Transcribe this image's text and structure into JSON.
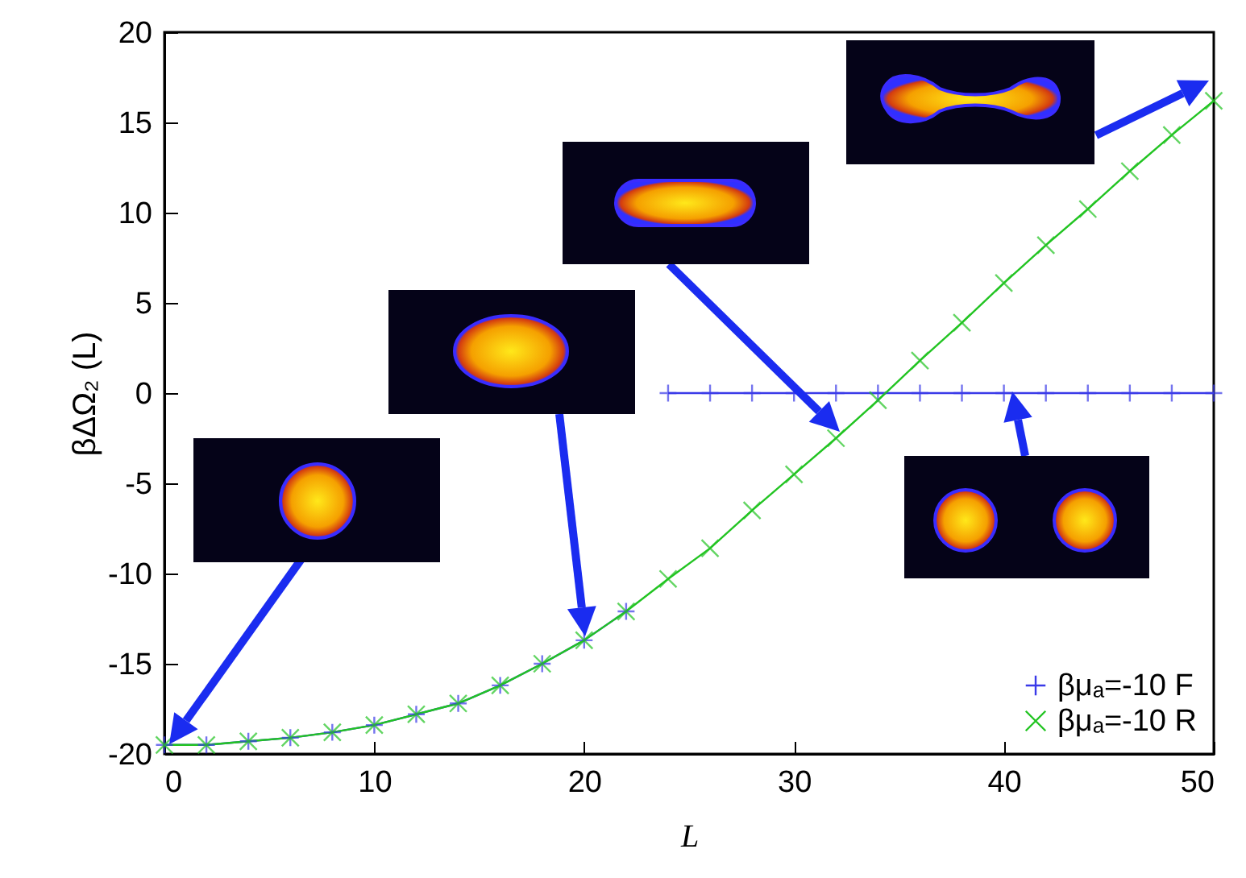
{
  "chart_data": {
    "type": "line",
    "xlabel": "L",
    "ylabel": "βΔΩ₂ (L)",
    "xlim": [
      0,
      50
    ],
    "ylim": [
      -20,
      20
    ],
    "xticks": [
      0,
      10,
      20,
      30,
      40,
      50
    ],
    "yticks": [
      -20,
      -15,
      -10,
      -5,
      0,
      5,
      10,
      15,
      20
    ],
    "grid": false,
    "legend": "bottom right",
    "marker": "cross",
    "line_style": "solid",
    "series": [
      {
        "name": "βμₐ=-10 F",
        "color": "#3a3ae8",
        "x": [
          0,
          2,
          4,
          6,
          8,
          10,
          12,
          14,
          16,
          18,
          20,
          22,
          23,
          24,
          26,
          28,
          30,
          32,
          34,
          36,
          38,
          40,
          42,
          44,
          46,
          48,
          50
        ],
        "values": [
          -19.5,
          -19.5,
          -19.3,
          -19.1,
          -18.8,
          -18.4,
          -17.8,
          -17.2,
          -16.2,
          -15.0,
          -13.7,
          -12.1,
          null,
          0,
          0,
          0,
          0,
          0,
          0,
          0,
          0,
          0,
          0,
          0,
          0,
          0,
          0
        ]
      },
      {
        "name": "βμₐ=-10 R",
        "color": "#22c422",
        "x": [
          0,
          2,
          4,
          6,
          8,
          10,
          12,
          14,
          16,
          18,
          20,
          22,
          24,
          26,
          28,
          30,
          32,
          34,
          36,
          38,
          40,
          42,
          44,
          46,
          48,
          50
        ],
        "values": [
          -19.5,
          -19.5,
          -19.3,
          -19.1,
          -18.8,
          -18.4,
          -17.8,
          -17.2,
          -16.2,
          -15.0,
          -13.7,
          -12.1,
          -10.3,
          -8.6,
          -6.5,
          -4.5,
          -2.5,
          -0.4,
          1.8,
          3.9,
          6.1,
          8.2,
          10.2,
          12.3,
          14.3,
          16.2
        ]
      }
    ]
  }
}
